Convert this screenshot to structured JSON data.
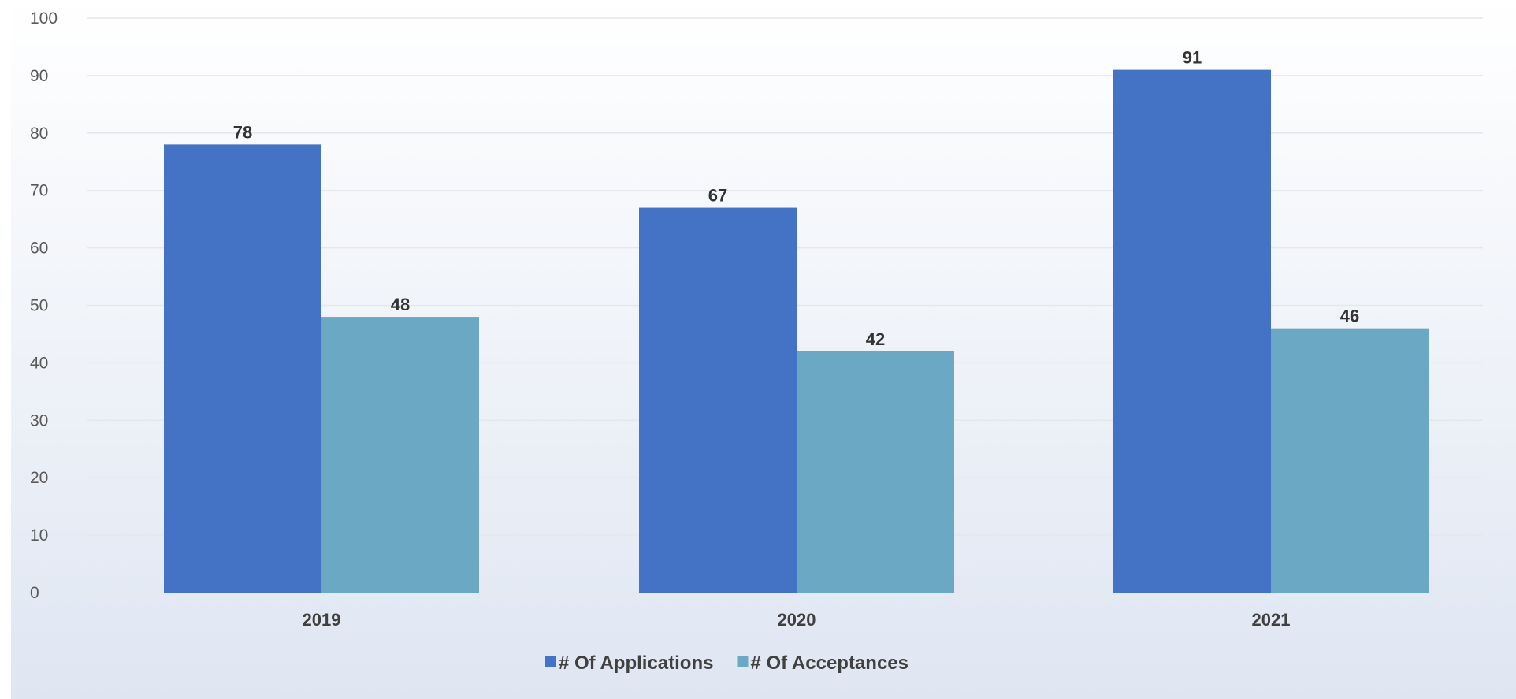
{
  "chart_data": {
    "type": "bar",
    "categories": [
      "2019",
      "2020",
      "2021"
    ],
    "series": [
      {
        "name": "# Of Applications",
        "values": [
          78,
          67,
          91
        ],
        "color": "#4472c4"
      },
      {
        "name": "# Of Acceptances",
        "values": [
          48,
          42,
          46
        ],
        "color": "#6ba8c4"
      }
    ],
    "ylim": [
      0,
      100
    ],
    "yticks": [
      0,
      10,
      20,
      30,
      40,
      50,
      60,
      70,
      80,
      90,
      100
    ],
    "grid": true,
    "legend": "bottom",
    "background_gradient": [
      "#ffffff",
      "#dfe6f2"
    ]
  }
}
